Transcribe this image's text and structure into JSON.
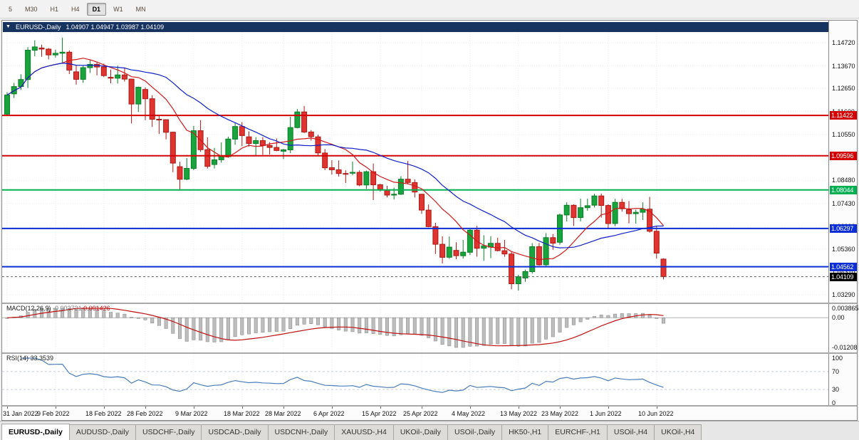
{
  "toolbar": {
    "periods": [
      "5",
      "M30",
      "H1",
      "H4",
      "D1",
      "W1",
      "MN"
    ],
    "active_period": "D1"
  },
  "chart_header": {
    "collapse_icon": "▼",
    "symbol": "EURUSD-,Daily",
    "ohlc": "1.04907 1.04947 1.03987 1.04109"
  },
  "price_axis_labels": [
    "1.14720",
    "1.13670",
    "1.12650",
    "1.11600",
    "1.10550",
    "1.09530",
    "1.08480",
    "1.07430",
    "1.06390",
    "1.05360",
    "1.04310",
    "1.03290"
  ],
  "hlines": [
    {
      "value": 1.11422,
      "label": "1.11422",
      "color": "#d40000"
    },
    {
      "value": 1.09596,
      "label": "1.09596",
      "color": "#d40000"
    },
    {
      "value": 1.08044,
      "label": "1.08044",
      "color": "#00b050"
    },
    {
      "value": 1.06297,
      "label": "1.06297",
      "color": "#0b2fd4"
    },
    {
      "value": 1.04562,
      "label": "1.04562",
      "color": "#0b2fd4"
    }
  ],
  "current_price": {
    "value": 1.04109,
    "label": "1.04109",
    "color": "#000000"
  },
  "chart_data": {
    "type": "candlestick",
    "symbol": "EURUSD-",
    "timeframe": "Daily",
    "price_range": {
      "max": 1.1472,
      "min": 1.0329
    },
    "x_labels": [
      {
        "i": 0,
        "label": "31 Jan 2022"
      },
      {
        "i": 7,
        "label": "9 Feb 2022"
      },
      {
        "i": 14,
        "label": "18 Feb 2022"
      },
      {
        "i": 20,
        "label": "28 Feb 2022"
      },
      {
        "i": 27,
        "label": "9 Mar 2022"
      },
      {
        "i": 34,
        "label": "18 Mar 2022"
      },
      {
        "i": 40,
        "label": "28 Mar 2022"
      },
      {
        "i": 47,
        "label": "6 Apr 2022"
      },
      {
        "i": 54,
        "label": "15 Apr 2022"
      },
      {
        "i": 60,
        "label": "25 Apr 2022"
      },
      {
        "i": 67,
        "label": "4 May 2022"
      },
      {
        "i": 74,
        "label": "13 May 2022"
      },
      {
        "i": 80,
        "label": "23 May 2022"
      },
      {
        "i": 87,
        "label": "1 Jun 2022"
      },
      {
        "i": 94,
        "label": "10 Jun 2022"
      }
    ],
    "ohlc": [
      [
        1.1148,
        1.1248,
        1.1139,
        1.1235
      ],
      [
        1.124,
        1.129,
        1.1221,
        1.1273
      ],
      [
        1.1273,
        1.1329,
        1.1258,
        1.1305
      ],
      [
        1.1305,
        1.1452,
        1.1267,
        1.1438
      ],
      [
        1.1438,
        1.1483,
        1.1411,
        1.1453
      ],
      [
        1.1448,
        1.1463,
        1.1408,
        1.1443
      ],
      [
        1.1443,
        1.1448,
        1.1396,
        1.1417
      ],
      [
        1.1417,
        1.144,
        1.1405,
        1.1424
      ],
      [
        1.1424,
        1.1495,
        1.1376,
        1.1429
      ],
      [
        1.1429,
        1.1437,
        1.133,
        1.1348
      ],
      [
        1.134,
        1.1369,
        1.1282,
        1.1306
      ],
      [
        1.1306,
        1.1368,
        1.129,
        1.1359
      ],
      [
        1.1359,
        1.1395,
        1.1335,
        1.1374
      ],
      [
        1.1374,
        1.1386,
        1.1324,
        1.1362
      ],
      [
        1.1362,
        1.1377,
        1.1316,
        1.1323
      ],
      [
        1.1315,
        1.135,
        1.1288,
        1.1311
      ],
      [
        1.1311,
        1.1368,
        1.1287,
        1.1326
      ],
      [
        1.1326,
        1.136,
        1.1296,
        1.1307
      ],
      [
        1.1307,
        1.1308,
        1.1106,
        1.1194
      ],
      [
        1.1194,
        1.1273,
        1.1158,
        1.127
      ],
      [
        1.126,
        1.127,
        1.1121,
        1.1218
      ],
      [
        1.1218,
        1.1234,
        1.109,
        1.1125
      ],
      [
        1.1125,
        1.1144,
        1.1058,
        1.1123
      ],
      [
        1.1123,
        1.1125,
        1.1034,
        1.1066
      ],
      [
        1.1066,
        1.1068,
        1.0885,
        1.0926
      ],
      [
        1.091,
        1.0932,
        1.0806,
        1.0853
      ],
      [
        1.0853,
        1.0949,
        1.0849,
        1.0902
      ],
      [
        1.0902,
        1.1095,
        1.0894,
        1.1073
      ],
      [
        1.1073,
        1.1121,
        1.0977,
        1.0987
      ],
      [
        1.0987,
        1.1043,
        1.0901,
        1.0911
      ],
      [
        1.092,
        1.0995,
        1.0902,
        1.0941
      ],
      [
        1.0941,
        1.102,
        1.0928,
        1.0955
      ],
      [
        1.0955,
        1.1046,
        1.095,
        1.1035
      ],
      [
        1.1035,
        1.1109,
        1.1009,
        1.1092
      ],
      [
        1.1092,
        1.1112,
        1.1003,
        1.1051
      ],
      [
        1.1045,
        1.107,
        1.1001,
        1.1015
      ],
      [
        1.1015,
        1.1044,
        1.0961,
        1.1028
      ],
      [
        1.1028,
        1.1044,
        1.0963,
        1.1006
      ],
      [
        1.1006,
        1.1021,
        1.0965,
        1.0997
      ],
      [
        1.0997,
        1.1038,
        1.098,
        1.0983
      ],
      [
        1.098,
        1.0991,
        1.0944,
        1.0986
      ],
      [
        1.0986,
        1.1137,
        1.0971,
        1.1087
      ],
      [
        1.1087,
        1.1171,
        1.1084,
        1.1158
      ],
      [
        1.1158,
        1.1185,
        1.1062,
        1.1067
      ],
      [
        1.1067,
        1.1076,
        1.1028,
        1.1046
      ],
      [
        1.1045,
        1.1055,
        1.096,
        1.0972
      ],
      [
        1.0972,
        1.099,
        1.0894,
        1.0905
      ],
      [
        1.0905,
        1.0939,
        1.0874,
        1.0896
      ],
      [
        1.0896,
        1.0938,
        1.0865,
        1.0879
      ],
      [
        1.0879,
        1.0893,
        1.0836,
        1.0876
      ],
      [
        1.088,
        1.0933,
        1.0871,
        1.0884
      ],
      [
        1.0884,
        1.0893,
        1.0821,
        1.0827
      ],
      [
        1.0827,
        1.0892,
        1.0809,
        1.0887
      ],
      [
        1.0887,
        1.0924,
        1.0758,
        1.0828
      ],
      [
        1.0828,
        1.0832,
        1.0797,
        1.0807
      ],
      [
        1.0805,
        1.0823,
        1.077,
        1.0781
      ],
      [
        1.0781,
        1.0815,
        1.0761,
        1.0785
      ],
      [
        1.0785,
        1.0867,
        1.0782,
        1.0853
      ],
      [
        1.0853,
        1.0936,
        1.083,
        1.0838
      ],
      [
        1.0838,
        1.0852,
        1.077,
        1.0795
      ],
      [
        1.0785,
        1.0787,
        1.0696,
        1.0713
      ],
      [
        1.0713,
        1.0738,
        1.0635,
        1.0638
      ],
      [
        1.0638,
        1.0655,
        1.0514,
        1.0558
      ],
      [
        1.0558,
        1.0594,
        1.0471,
        1.0499
      ],
      [
        1.0499,
        1.0593,
        1.0492,
        1.0545
      ],
      [
        1.053,
        1.0567,
        1.049,
        1.0506
      ],
      [
        1.0506,
        1.0578,
        1.0493,
        1.0522
      ],
      [
        1.0522,
        1.0631,
        1.0509,
        1.0622
      ],
      [
        1.0622,
        1.0642,
        1.0502,
        1.054
      ],
      [
        1.054,
        1.0599,
        1.0483,
        1.0551
      ],
      [
        1.0545,
        1.0594,
        1.0495,
        1.0562
      ],
      [
        1.0562,
        1.0588,
        1.0526,
        1.0529
      ],
      [
        1.0529,
        1.0578,
        1.0501,
        1.0514
      ],
      [
        1.0514,
        1.0524,
        1.0354,
        1.0379
      ],
      [
        1.0379,
        1.042,
        1.0348,
        1.0411
      ],
      [
        1.0405,
        1.0443,
        1.0388,
        1.0434
      ],
      [
        1.0434,
        1.0563,
        1.0425,
        1.0547
      ],
      [
        1.0547,
        1.0564,
        1.0461,
        1.0465
      ],
      [
        1.0465,
        1.0608,
        1.0459,
        1.0588
      ],
      [
        1.0588,
        1.0604,
        1.0533,
        1.0563
      ],
      [
        1.0567,
        1.0697,
        1.0556,
        1.0691
      ],
      [
        1.0691,
        1.0748,
        1.0661,
        1.0735
      ],
      [
        1.0735,
        1.0739,
        1.0641,
        1.0679
      ],
      [
        1.0679,
        1.0765,
        1.0662,
        1.0724
      ],
      [
        1.0724,
        1.0765,
        1.071,
        1.0733
      ],
      [
        1.0735,
        1.0787,
        1.0725,
        1.0777
      ],
      [
        1.0777,
        1.0788,
        1.0679,
        1.0734
      ],
      [
        1.0734,
        1.0739,
        1.0627,
        1.0652
      ],
      [
        1.0652,
        1.0764,
        1.064,
        1.0748
      ],
      [
        1.0748,
        1.0764,
        1.0706,
        1.0719
      ],
      [
        1.0715,
        1.0754,
        1.0653,
        1.0697
      ],
      [
        1.0697,
        1.0715,
        1.0652,
        1.0703
      ],
      [
        1.0703,
        1.0748,
        1.0668,
        1.0717
      ],
      [
        1.0717,
        1.0773,
        1.0611,
        1.0617
      ],
      [
        1.0617,
        1.0642,
        1.0493,
        1.0518
      ],
      [
        1.04907,
        1.04947,
        1.03987,
        1.04109
      ]
    ],
    "moving_averages": [
      {
        "type": "sma",
        "period": 9,
        "color": "#d01818",
        "name": "ma-fast-line"
      },
      {
        "type": "sma",
        "period": 21,
        "color": "#1020c8",
        "name": "ma-slow-line"
      }
    ]
  },
  "macd": {
    "name": "MACD(12,26,9)",
    "value_main": "-0.002721",
    "value_signal": "0.001426",
    "fast": 12,
    "slow": 26,
    "signal": 9,
    "scale": {
      "max": 0.003865,
      "min": -0.01208
    },
    "axis_labels": [
      {
        "value": 0.003865,
        "label": "0.003865"
      },
      {
        "value": 0,
        "label": "0.00"
      },
      {
        "value": -0.01208,
        "label": "-0.01208"
      }
    ],
    "histogram_color": "#bdbdbd",
    "histogram_border": "#8f8f8f",
    "signal_color": "#c01010"
  },
  "rsi": {
    "name": "RSI(14)",
    "value": "33.3539",
    "period": 14,
    "levels": [
      70,
      30
    ],
    "axis_labels": [
      {
        "value": 100,
        "label": "100"
      },
      {
        "value": 70,
        "label": "70"
      },
      {
        "value": 30,
        "label": "30"
      },
      {
        "value": 0,
        "label": "0"
      }
    ],
    "line_color": "#4a7ebb"
  },
  "tabs": [
    "EURUSD-,Daily",
    "AUDUSD-,Daily",
    "USDCHF-,Daily",
    "USDCAD-,Daily",
    "USDCNH-,Daily",
    "XAUUSD-,H4",
    "UKOil-,Daily",
    "USOil-,Daily",
    "HK50-,H1",
    "EURCHF-,H1",
    "USOil-,H4",
    "UKOil-,H4"
  ],
  "active_tab": "EURUSD-,Daily",
  "colors": {
    "bull": "#18a33c",
    "bull_border": "#0b7d28",
    "bear": "#e03430",
    "bear_border": "#aa1a14",
    "grid": "#ececec",
    "bid_line": "#606060",
    "header_bg": "#17335f",
    "chart_bg": "#ffffff"
  }
}
